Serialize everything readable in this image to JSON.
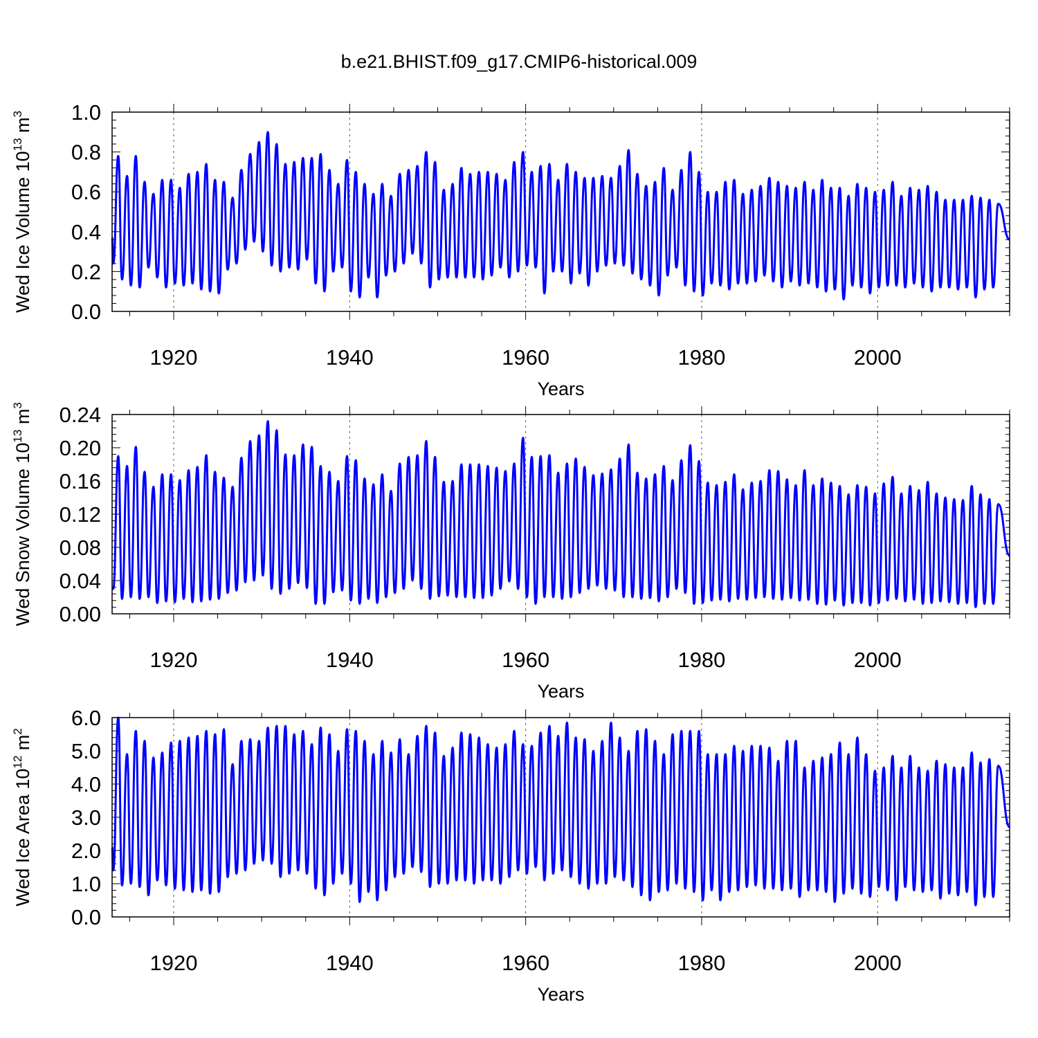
{
  "figure_title": "b.e21.BHIST.f09_g17.CMIP6-historical.009",
  "line_color": "#0000ff",
  "chart_data": [
    {
      "type": "line",
      "name": "Wed Ice Volume",
      "ylabel_main": "Wed Ice Volume 10",
      "ylabel_exp": "13",
      "ylabel_unit": " m",
      "ylabel_unit_exp": "3",
      "xlabel": "Years",
      "xlim": [
        1913,
        2015
      ],
      "ylim": [
        0.0,
        1.0
      ],
      "yticks": [
        0.0,
        0.2,
        0.4,
        0.6,
        0.8,
        1.0
      ],
      "ytick_labels": [
        "0.0",
        "0.2",
        "0.4",
        "0.6",
        "0.8",
        "1.0"
      ],
      "xticks": [
        1920,
        1940,
        1960,
        1980,
        2000
      ],
      "xtick_labels": [
        "1920",
        "1940",
        "1960",
        "1980",
        "2000"
      ],
      "start_year": 1913.0,
      "start_value": 0.37,
      "end_value": 0.36,
      "annual_max": [
        0.78,
        0.68,
        0.78,
        0.65,
        0.59,
        0.66,
        0.66,
        0.62,
        0.69,
        0.7,
        0.74,
        0.66,
        0.65,
        0.57,
        0.71,
        0.79,
        0.85,
        0.9,
        0.84,
        0.74,
        0.75,
        0.77,
        0.77,
        0.79,
        0.71,
        0.64,
        0.76,
        0.7,
        0.64,
        0.59,
        0.64,
        0.58,
        0.69,
        0.71,
        0.73,
        0.8,
        0.75,
        0.61,
        0.64,
        0.72,
        0.69,
        0.7,
        0.7,
        0.69,
        0.66,
        0.75,
        0.8,
        0.7,
        0.73,
        0.74,
        0.66,
        0.74,
        0.7,
        0.67,
        0.67,
        0.68,
        0.67,
        0.73,
        0.81,
        0.69,
        0.63,
        0.65,
        0.72,
        0.61,
        0.71,
        0.8,
        0.7,
        0.6,
        0.6,
        0.65,
        0.66,
        0.59,
        0.61,
        0.63,
        0.67,
        0.65,
        0.63,
        0.62,
        0.65,
        0.61,
        0.66,
        0.62,
        0.62,
        0.58,
        0.64,
        0.62,
        0.6,
        0.61,
        0.65,
        0.58,
        0.62,
        0.61,
        0.63,
        0.6,
        0.56,
        0.56,
        0.56,
        0.58,
        0.57,
        0.56,
        0.54
      ],
      "annual_min": [
        0.24,
        0.16,
        0.13,
        0.12,
        0.22,
        0.17,
        0.12,
        0.14,
        0.13,
        0.14,
        0.11,
        0.1,
        0.09,
        0.21,
        0.24,
        0.31,
        0.35,
        0.3,
        0.23,
        0.2,
        0.22,
        0.21,
        0.26,
        0.14,
        0.1,
        0.2,
        0.22,
        0.1,
        0.07,
        0.17,
        0.07,
        0.18,
        0.2,
        0.24,
        0.29,
        0.24,
        0.12,
        0.16,
        0.17,
        0.17,
        0.17,
        0.17,
        0.16,
        0.18,
        0.22,
        0.17,
        0.2,
        0.23,
        0.22,
        0.09,
        0.2,
        0.2,
        0.14,
        0.19,
        0.13,
        0.2,
        0.23,
        0.24,
        0.23,
        0.19,
        0.16,
        0.13,
        0.08,
        0.18,
        0.22,
        0.13,
        0.1,
        0.08,
        0.14,
        0.13,
        0.11,
        0.14,
        0.14,
        0.15,
        0.18,
        0.15,
        0.12,
        0.15,
        0.13,
        0.14,
        0.12,
        0.1,
        0.11,
        0.06,
        0.13,
        0.12,
        0.09,
        0.12,
        0.13,
        0.13,
        0.12,
        0.14,
        0.12,
        0.1,
        0.12,
        0.12,
        0.11,
        0.12,
        0.07,
        0.11,
        0.12
      ]
    },
    {
      "type": "line",
      "name": "Wed Snow Volume",
      "ylabel_main": "Wed Snow Volume 10",
      "ylabel_exp": "13",
      "ylabel_unit": " m",
      "ylabel_unit_exp": "3",
      "xlabel": "Years",
      "xlim": [
        1913,
        2015
      ],
      "ylim": [
        0.0,
        0.24
      ],
      "yticks": [
        0.0,
        0.04,
        0.08,
        0.12,
        0.16,
        0.2,
        0.24
      ],
      "ytick_labels": [
        "0.00",
        "0.04",
        "0.08",
        "0.12",
        "0.16",
        "0.20",
        "0.24"
      ],
      "xticks": [
        1920,
        1940,
        1960,
        1980,
        2000
      ],
      "xtick_labels": [
        "1920",
        "1940",
        "1960",
        "1980",
        "2000"
      ],
      "start_year": 1913.0,
      "start_value": 0.03,
      "end_value": 0.07,
      "annual_max": [
        0.19,
        0.178,
        0.201,
        0.171,
        0.153,
        0.168,
        0.168,
        0.161,
        0.173,
        0.177,
        0.191,
        0.171,
        0.164,
        0.153,
        0.188,
        0.208,
        0.215,
        0.232,
        0.221,
        0.192,
        0.191,
        0.204,
        0.201,
        0.178,
        0.171,
        0.16,
        0.19,
        0.185,
        0.163,
        0.156,
        0.168,
        0.148,
        0.181,
        0.189,
        0.191,
        0.208,
        0.189,
        0.159,
        0.16,
        0.18,
        0.18,
        0.18,
        0.178,
        0.176,
        0.172,
        0.181,
        0.212,
        0.189,
        0.19,
        0.191,
        0.17,
        0.181,
        0.187,
        0.177,
        0.167,
        0.169,
        0.174,
        0.187,
        0.204,
        0.17,
        0.163,
        0.168,
        0.178,
        0.161,
        0.185,
        0.203,
        0.184,
        0.158,
        0.155,
        0.159,
        0.168,
        0.15,
        0.158,
        0.16,
        0.173,
        0.172,
        0.162,
        0.155,
        0.173,
        0.155,
        0.163,
        0.158,
        0.154,
        0.144,
        0.155,
        0.153,
        0.145,
        0.157,
        0.165,
        0.145,
        0.154,
        0.149,
        0.159,
        0.145,
        0.14,
        0.138,
        0.137,
        0.154,
        0.144,
        0.138,
        0.132
      ],
      "annual_min": [
        0.03,
        0.018,
        0.02,
        0.018,
        0.02,
        0.013,
        0.015,
        0.014,
        0.018,
        0.014,
        0.015,
        0.017,
        0.018,
        0.025,
        0.028,
        0.038,
        0.04,
        0.046,
        0.03,
        0.024,
        0.03,
        0.037,
        0.031,
        0.012,
        0.012,
        0.026,
        0.028,
        0.016,
        0.012,
        0.018,
        0.013,
        0.02,
        0.025,
        0.03,
        0.04,
        0.03,
        0.018,
        0.021,
        0.022,
        0.02,
        0.02,
        0.019,
        0.019,
        0.022,
        0.03,
        0.039,
        0.03,
        0.02,
        0.012,
        0.02,
        0.02,
        0.018,
        0.02,
        0.025,
        0.03,
        0.034,
        0.03,
        0.028,
        0.02,
        0.02,
        0.018,
        0.019,
        0.015,
        0.02,
        0.03,
        0.025,
        0.012,
        0.013,
        0.016,
        0.017,
        0.015,
        0.018,
        0.017,
        0.019,
        0.02,
        0.018,
        0.017,
        0.019,
        0.016,
        0.017,
        0.012,
        0.011,
        0.016,
        0.01,
        0.013,
        0.013,
        0.01,
        0.013,
        0.016,
        0.018,
        0.015,
        0.017,
        0.012,
        0.013,
        0.015,
        0.014,
        0.012,
        0.013,
        0.008,
        0.012,
        0.012
      ]
    },
    {
      "type": "line",
      "name": "Wed Ice Area",
      "ylabel_main": "Wed Ice Area 10",
      "ylabel_exp": "12",
      "ylabel_unit": " m",
      "ylabel_unit_exp": "2",
      "xlabel": "Years",
      "xlim": [
        1913,
        2015
      ],
      "ylim": [
        0.0,
        6.0
      ],
      "yticks": [
        0.0,
        1.0,
        2.0,
        3.0,
        4.0,
        5.0,
        6.0
      ],
      "ytick_labels": [
        "0.0",
        "1.0",
        "2.0",
        "3.0",
        "4.0",
        "5.0",
        "6.0"
      ],
      "xticks": [
        1920,
        1940,
        1960,
        1980,
        2000
      ],
      "xtick_labels": [
        "1920",
        "1940",
        "1960",
        "1980",
        "2000"
      ],
      "start_year": 1913.0,
      "start_value": 2.1,
      "end_value": 2.7,
      "annual_max": [
        6.0,
        4.9,
        5.6,
        5.3,
        4.8,
        4.95,
        5.25,
        5.3,
        5.4,
        5.45,
        5.6,
        5.5,
        5.65,
        4.6,
        5.3,
        5.35,
        5.3,
        5.7,
        5.75,
        5.75,
        5.5,
        5.6,
        5.2,
        5.7,
        5.5,
        5.0,
        5.65,
        5.6,
        5.3,
        4.9,
        5.3,
        4.95,
        5.35,
        4.9,
        5.45,
        5.75,
        5.55,
        4.85,
        5.1,
        5.55,
        5.5,
        5.4,
        5.2,
        5.1,
        5.2,
        5.6,
        5.2,
        5.15,
        5.55,
        5.75,
        5.45,
        5.85,
        5.4,
        5.35,
        5.0,
        5.3,
        5.85,
        5.4,
        5.0,
        5.6,
        5.65,
        5.3,
        4.9,
        5.5,
        5.6,
        5.6,
        5.6,
        4.9,
        4.9,
        4.9,
        5.15,
        5.0,
        5.15,
        5.15,
        5.1,
        4.7,
        5.3,
        5.3,
        4.5,
        4.7,
        4.8,
        4.9,
        5.25,
        4.9,
        5.4,
        4.9,
        4.4,
        4.5,
        4.85,
        4.5,
        4.85,
        4.5,
        4.4,
        4.7,
        4.6,
        4.5,
        4.5,
        4.95,
        4.65,
        4.75,
        4.55
      ],
      "annual_min": [
        1.4,
        0.95,
        1.0,
        0.9,
        0.65,
        1.1,
        0.95,
        0.85,
        0.8,
        0.75,
        0.8,
        0.7,
        0.75,
        1.2,
        1.3,
        1.4,
        1.6,
        1.7,
        1.6,
        1.2,
        1.3,
        1.4,
        1.3,
        0.85,
        0.65,
        1.0,
        1.3,
        1.0,
        0.45,
        0.75,
        0.5,
        0.8,
        1.2,
        1.3,
        1.5,
        1.35,
        0.9,
        1.0,
        1.0,
        1.1,
        1.1,
        1.0,
        1.1,
        1.1,
        1.0,
        1.2,
        1.4,
        1.3,
        1.5,
        1.1,
        1.3,
        1.4,
        1.2,
        1.0,
        0.85,
        1.0,
        1.0,
        1.2,
        1.1,
        0.9,
        0.65,
        0.5,
        0.75,
        0.8,
        1.0,
        0.85,
        0.75,
        0.5,
        0.8,
        0.5,
        0.75,
        0.8,
        0.9,
        0.95,
        0.85,
        0.85,
        0.8,
        0.85,
        0.6,
        0.8,
        0.8,
        0.75,
        0.45,
        0.7,
        0.85,
        0.7,
        0.6,
        0.9,
        0.8,
        0.5,
        0.9,
        0.8,
        0.75,
        0.8,
        0.55,
        0.7,
        0.65,
        0.75,
        0.35,
        0.6,
        0.6
      ]
    }
  ]
}
